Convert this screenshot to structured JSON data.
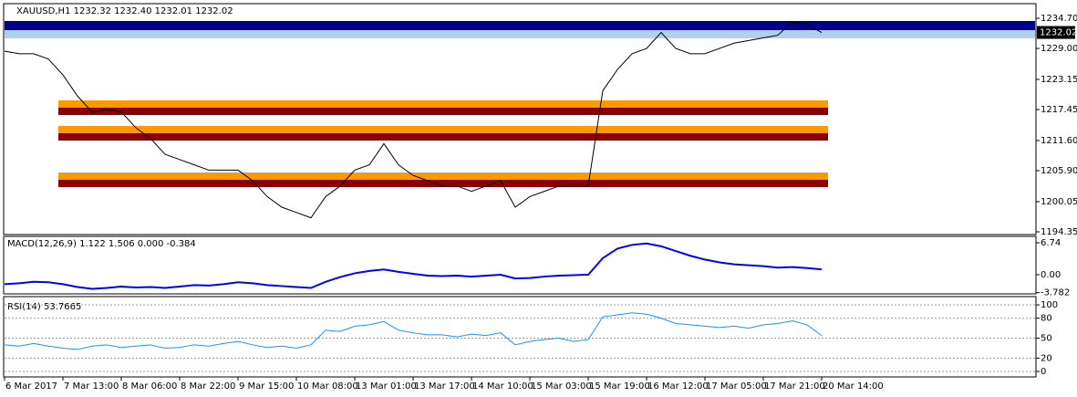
{
  "chart_data": [
    {
      "type": "line",
      "title": "XAUUSD,H1 1232.32 1232.40 1232.01 1232.02",
      "categories": [
        "6 Mar 2017",
        null,
        null,
        null,
        "7 Mar 13:00",
        null,
        null,
        null,
        "8 Mar 06:00",
        null,
        null,
        null,
        "8 Mar 22:00",
        null,
        null,
        null,
        "9 Mar 15:00",
        null,
        null,
        null,
        "10 Mar 08:00",
        null,
        null,
        null,
        "13 Mar 01:00",
        null,
        null,
        null,
        "13 Mar 17:00",
        null,
        null,
        null,
        "14 Mar 10:00",
        null,
        null,
        null,
        "15 Mar 03:00",
        null,
        null,
        null,
        "15 Mar 19:00",
        null,
        null,
        null,
        "16 Mar 12:00",
        null,
        null,
        null,
        "17 Mar 05:00",
        null,
        null,
        null,
        "17 Mar 21:00",
        null,
        null,
        null,
        "20 Mar 14:00"
      ],
      "series": [
        {
          "color": "#000000",
          "values": [
            1228.5,
            1228,
            1228,
            1227,
            1224,
            1220,
            1217,
            1217.5,
            1217,
            1214,
            1212,
            1209,
            1208,
            1207,
            1206,
            1206,
            1206,
            1204,
            1201,
            1199,
            1198,
            1197,
            1201,
            1203,
            1206,
            1207,
            1211,
            1207,
            1205,
            1204,
            1203,
            1203,
            1202,
            1203,
            1204,
            1199,
            1201,
            1202,
            1203,
            1203,
            1203,
            1221,
            1225,
            1228,
            1229,
            1232,
            1229,
            1228,
            1228,
            1229,
            1230,
            1230.5,
            1231,
            1231.5,
            1234,
            1233.5,
            1232.02
          ]
        }
      ],
      "last_price": 1232.02,
      "ylim": [
        1193.83,
        1237.29
      ],
      "yticks": [
        {
          "value": 1234.7,
          "label": "1234.70"
        },
        {
          "value": 1229,
          "label": "1229.00"
        },
        1223.15,
        {
          "value": 1217.45,
          "label": "1217.45"
        },
        {
          "value": 1211.6,
          "label": "1211.60"
        },
        {
          "value": 1205.9,
          "label": "1205.90"
        },
        {
          "value": 1200.05,
          "label": "1200.05"
        },
        1194.35
      ]
    },
    {
      "type": "line",
      "title": "MACD(12,26,9) 1.122 1.506 0.000 -0.384",
      "series": [
        {
          "color": "#0000ff",
          "values": [
            -2,
            -1.8,
            -1.5,
            -1.6,
            -2,
            -2.6,
            -3,
            -2.8,
            -2.5,
            -2.7,
            -2.6,
            -2.8,
            -2.5,
            -2.2,
            -2.3,
            -2,
            -1.6,
            -1.8,
            -2.2,
            -2.4,
            -2.6,
            -2.8,
            -1.5,
            -0.5,
            0.3,
            0.8,
            1.1,
            0.6,
            0.2,
            -0.2,
            -0.3,
            -0.2,
            -0.4,
            -0.2,
            0,
            -0.8,
            -0.7,
            -0.4,
            -0.2,
            -0.1,
            0,
            3.5,
            5.5,
            6.3,
            6.6,
            6,
            5,
            4,
            3.2,
            2.6,
            2.2,
            2,
            1.8,
            1.5,
            1.6,
            1.4,
            1.122
          ]
        }
      ],
      "ylim": [
        -4.05,
        7.9
      ],
      "yticks": [
        6.74,
        {
          "value": 0,
          "label": "0.00"
        },
        -3.782
      ]
    },
    {
      "type": "line",
      "title": "RSI(14) 53.7665",
      "series": [
        {
          "color": "#1e90ff",
          "values": [
            40,
            38,
            42,
            38,
            35,
            33,
            38,
            40,
            36,
            38,
            40,
            35,
            36,
            40,
            38,
            42,
            45,
            40,
            36,
            38,
            35,
            40,
            62,
            60,
            68,
            70,
            75,
            62,
            58,
            55,
            55,
            52,
            56,
            54,
            58,
            40,
            45,
            48,
            50,
            45,
            48,
            82,
            85,
            88,
            86,
            80,
            72,
            70,
            68,
            66,
            68,
            65,
            70,
            72,
            76,
            70,
            53.7665
          ]
        }
      ],
      "ylim": [
        -8.2,
        111
      ],
      "yticks": [
        100,
        80,
        50,
        20,
        0
      ],
      "grid": true
    }
  ]
}
